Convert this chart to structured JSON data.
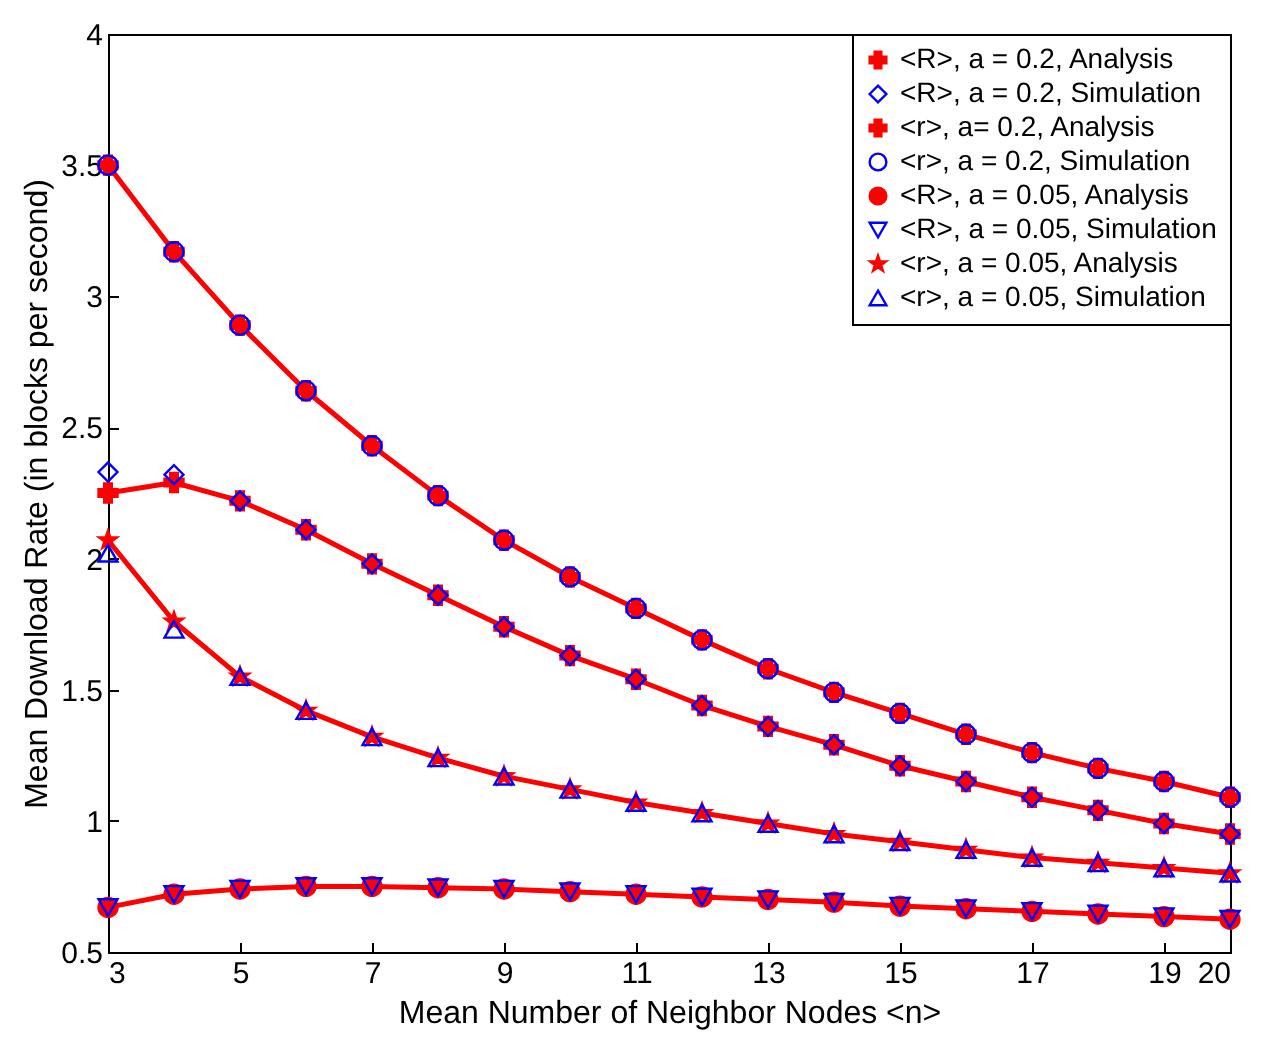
{
  "chart_data": {
    "type": "line",
    "xlabel": "Mean Number of Neighbor Nodes <n>",
    "ylabel": "Mean Download Rate (in blocks per second)",
    "x": [
      3,
      4,
      5,
      6,
      7,
      8,
      9,
      10,
      11,
      12,
      13,
      14,
      15,
      16,
      17,
      18,
      19,
      20
    ],
    "xlim": [
      3,
      20
    ],
    "xticks": [
      3,
      5,
      7,
      9,
      11,
      13,
      15,
      17,
      19,
      20
    ],
    "ylim": [
      0.5,
      4
    ],
    "yticks": [
      0.5,
      1,
      1.5,
      2,
      2.5,
      3,
      3.5,
      4
    ],
    "grid": false,
    "legend": "top right",
    "series": [
      {
        "name": "<R>, a = 0.2, Analysis",
        "type": "line",
        "marker": "cross",
        "color": "#ff0000",
        "values": [
          2.25,
          2.29,
          2.22,
          2.11,
          1.98,
          1.86,
          1.74,
          1.63,
          1.54,
          1.44,
          1.36,
          1.29,
          1.21,
          1.15,
          1.09,
          1.04,
          0.99,
          0.95
        ]
      },
      {
        "name": "<R>, a = 0.2, Simulation",
        "type": "scatter",
        "marker": "diamond",
        "color": "#0000ff",
        "values": [
          2.33,
          2.32,
          2.22,
          2.11,
          1.98,
          1.86,
          1.74,
          1.63,
          1.54,
          1.44,
          1.36,
          1.29,
          1.21,
          1.15,
          1.09,
          1.04,
          0.99,
          0.95
        ]
      },
      {
        "name": "<r>, a= 0.2, Analysis",
        "type": "line",
        "marker": "cross",
        "color": "#ff0000",
        "values": [
          3.5,
          3.17,
          2.89,
          2.64,
          2.43,
          2.24,
          2.07,
          1.93,
          1.81,
          1.69,
          1.58,
          1.49,
          1.41,
          1.33,
          1.26,
          1.2,
          1.15,
          1.09
        ]
      },
      {
        "name": "<r>, a = 0.2, Simulation",
        "type": "scatter",
        "marker": "circle",
        "color": "#0000ff",
        "values": [
          3.5,
          3.17,
          2.89,
          2.64,
          2.43,
          2.24,
          2.07,
          1.93,
          1.81,
          1.69,
          1.58,
          1.49,
          1.41,
          1.33,
          1.26,
          1.2,
          1.15,
          1.09
        ]
      },
      {
        "name": "<R>, a = 0.05, Analysis",
        "type": "line",
        "marker": "circle",
        "color": "#ff0000",
        "values": [
          0.67,
          0.72,
          0.74,
          0.75,
          0.75,
          0.745,
          0.74,
          0.73,
          0.72,
          0.71,
          0.7,
          0.69,
          0.675,
          0.665,
          0.655,
          0.645,
          0.635,
          0.625
        ]
      },
      {
        "name": "<R>, a = 0.05, Simulation",
        "type": "scatter",
        "marker": "triangle-down",
        "color": "#0000ff",
        "values": [
          0.67,
          0.72,
          0.74,
          0.75,
          0.75,
          0.745,
          0.74,
          0.73,
          0.72,
          0.71,
          0.7,
          0.69,
          0.675,
          0.665,
          0.655,
          0.645,
          0.635,
          0.625
        ]
      },
      {
        "name": "<r>, a = 0.05, Analysis",
        "type": "line",
        "marker": "star",
        "color": "#ff0000",
        "values": [
          2.07,
          1.76,
          1.55,
          1.42,
          1.32,
          1.24,
          1.17,
          1.12,
          1.07,
          1.03,
          0.99,
          0.95,
          0.92,
          0.89,
          0.86,
          0.84,
          0.82,
          0.8
        ]
      },
      {
        "name": "<r>, a = 0.05, Simulation",
        "type": "scatter",
        "marker": "triangle",
        "color": "#0000ff",
        "values": [
          2.02,
          1.73,
          1.55,
          1.42,
          1.32,
          1.24,
          1.17,
          1.12,
          1.07,
          1.03,
          0.99,
          0.95,
          0.92,
          0.89,
          0.86,
          0.84,
          0.82,
          0.8
        ]
      }
    ]
  }
}
